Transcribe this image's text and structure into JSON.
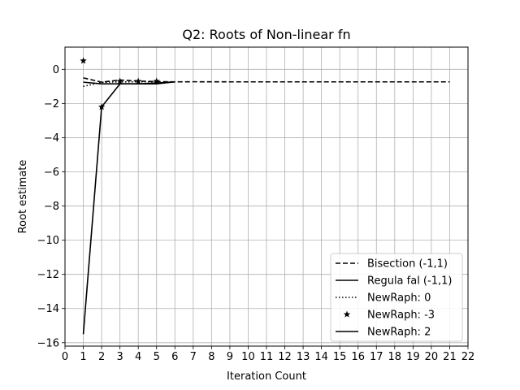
{
  "chart_data": {
    "type": "line",
    "title": "Q2: Roots of Non-linear fn",
    "xlabel": "Iteration Count",
    "ylabel": "Root estimate",
    "xlim": [
      0,
      22
    ],
    "ylim": [
      -16.2,
      1.3
    ],
    "xticks": [
      0,
      1,
      2,
      3,
      4,
      5,
      6,
      7,
      8,
      9,
      10,
      11,
      12,
      13,
      14,
      15,
      16,
      17,
      18,
      19,
      20,
      21,
      22
    ],
    "yticks": [
      0,
      -2,
      -4,
      -6,
      -8,
      -10,
      -12,
      -14,
      -16
    ],
    "grid": true,
    "legend_position": "lower-right",
    "series": [
      {
        "name": "Bisection  (-1,1)",
        "style": "dashed",
        "color": "#000000",
        "x": [
          1,
          2,
          3,
          4,
          5,
          6,
          7,
          8,
          9,
          10,
          11,
          12,
          13,
          14,
          15,
          16,
          17,
          18,
          19,
          20,
          21
        ],
        "y": [
          -0.5,
          -0.75,
          -0.625,
          -0.6875,
          -0.71875,
          -0.734,
          -0.7266,
          -0.7305,
          -0.7324,
          -0.7334,
          -0.7329,
          -0.7332,
          -0.7333,
          -0.7333,
          -0.7333,
          -0.7333,
          -0.7333,
          -0.7333,
          -0.7333,
          -0.7333,
          -0.7333
        ]
      },
      {
        "name": "Regula fal (-1,1)",
        "style": "solid",
        "color": "#000000",
        "x": [
          1,
          2,
          3,
          4,
          5,
          6
        ],
        "y": [
          -0.75,
          -0.85,
          -0.85,
          -0.85,
          -0.85,
          -0.73
        ]
      },
      {
        "name": "NewRaph: 0",
        "style": "dotted",
        "color": "#000000",
        "x": [
          1,
          2,
          3,
          4,
          5
        ],
        "y": [
          -1.0,
          -0.76,
          -0.734,
          -0.7333,
          -0.7333
        ]
      },
      {
        "name": "NewRaph: -3",
        "style": "star",
        "color": "#000000",
        "x": [
          1,
          2,
          3,
          4,
          5
        ],
        "y": [
          0.5,
          -2.2,
          -0.7,
          -0.7,
          -0.7
        ]
      },
      {
        "name": "NewRaph: 2",
        "style": "solid",
        "color": "#000000",
        "x": [
          1,
          2,
          3,
          4,
          5,
          6
        ],
        "y": [
          -15.5,
          -2.2,
          -0.85,
          -0.85,
          -0.8,
          -0.73
        ]
      }
    ]
  }
}
